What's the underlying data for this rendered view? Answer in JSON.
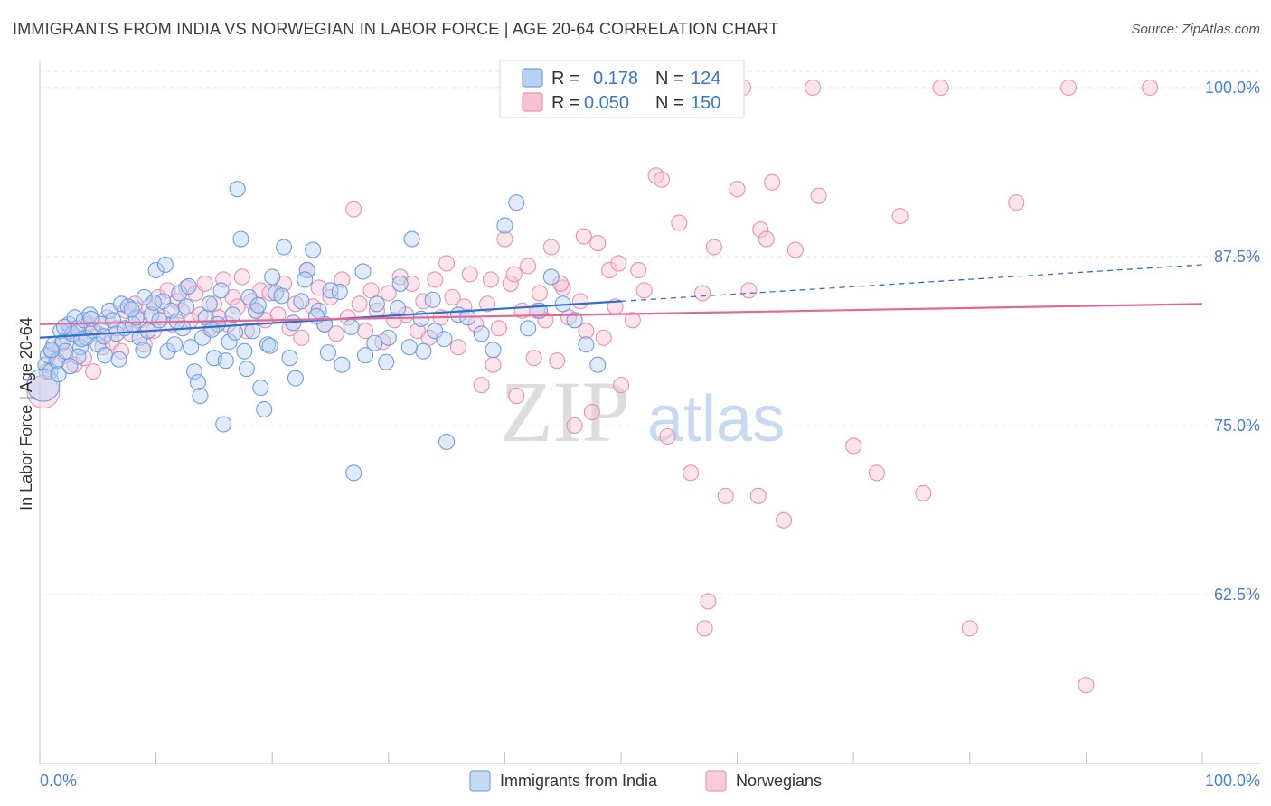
{
  "title": "IMMIGRANTS FROM INDIA VS NORWEGIAN IN LABOR FORCE | AGE 20-64 CORRELATION CHART",
  "source": "Source: ZipAtlas.com",
  "watermark": {
    "zip": "ZIP",
    "atlas": "atlas"
  },
  "legend": {
    "r_label": "R =",
    "n_label": "N =",
    "entries": [
      {
        "r": "0.178",
        "n": "124",
        "fill": "#b8d1f3",
        "stroke": "#6e9ee0"
      },
      {
        "r": "0.050",
        "n": "150",
        "fill": "#f7c3d3",
        "stroke": "#e891ae"
      }
    ]
  },
  "bottom_legend": [
    {
      "label": "Immigrants from India",
      "fill": "#c5d9f5",
      "stroke": "#7aa4e0"
    },
    {
      "label": "Norwegians",
      "fill": "#f8cbd9",
      "stroke": "#e7a0b8"
    }
  ],
  "chart_data": {
    "type": "scatter",
    "title": "IMMIGRANTS FROM INDIA VS NORWEGIAN IN LABOR FORCE | AGE 20-64 CORRELATION CHART",
    "xlabel": "",
    "ylabel": "In Labor Force | Age 20-64",
    "xlim": [
      0,
      100
    ],
    "ylim": [
      50,
      101
    ],
    "x_tick_labels": [
      "0.0%",
      "100.0%"
    ],
    "y_ticks": [
      62.5,
      75.0,
      87.5,
      100.0
    ],
    "y_tick_labels": [
      "62.5%",
      "75.0%",
      "87.5%",
      "100.0%"
    ],
    "grid": true,
    "legend_position": "top-center",
    "colors": {
      "india": "#4f86d8",
      "norwegians": "#e57fa3",
      "india_line": "#2f6fce",
      "norwegians_line": "#e26896"
    },
    "series": [
      {
        "name": "Immigrants from India",
        "r": 0.178,
        "n": 124,
        "trend": {
          "x": [
            0,
            50,
            100
          ],
          "y": [
            81.5,
            84.2,
            86.9
          ],
          "solid_until": 50
        },
        "points": [
          [
            0.5,
            79.5
          ],
          [
            0.7,
            80.2
          ],
          [
            0.9,
            79.0
          ],
          [
            1.2,
            81.0
          ],
          [
            1.5,
            79.8
          ],
          [
            1.8,
            82.0
          ],
          [
            2.0,
            81.2
          ],
          [
            2.2,
            80.5
          ],
          [
            2.5,
            82.5
          ],
          [
            2.8,
            81.8
          ],
          [
            3.0,
            83.0
          ],
          [
            3.2,
            82.2
          ],
          [
            3.5,
            80.8
          ],
          [
            3.8,
            82.8
          ],
          [
            4.0,
            81.5
          ],
          [
            4.3,
            83.2
          ],
          [
            4.6,
            82.0
          ],
          [
            5.0,
            81.0
          ],
          [
            5.3,
            82.5
          ],
          [
            5.6,
            80.2
          ],
          [
            6.0,
            83.5
          ],
          [
            6.3,
            82.8
          ],
          [
            6.6,
            81.8
          ],
          [
            7.0,
            84.0
          ],
          [
            7.3,
            82.2
          ],
          [
            7.6,
            83.8
          ],
          [
            8.0,
            82.5
          ],
          [
            8.3,
            83.0
          ],
          [
            8.6,
            81.5
          ],
          [
            9.0,
            84.5
          ],
          [
            9.3,
            82.0
          ],
          [
            9.6,
            83.2
          ],
          [
            10.0,
            86.5
          ],
          [
            10.3,
            82.8
          ],
          [
            10.6,
            84.2
          ],
          [
            11.0,
            80.5
          ],
          [
            11.3,
            83.5
          ],
          [
            11.6,
            81.0
          ],
          [
            12.0,
            84.8
          ],
          [
            12.3,
            82.2
          ],
          [
            12.6,
            83.8
          ],
          [
            13.0,
            80.8
          ],
          [
            13.3,
            79.0
          ],
          [
            13.6,
            78.2
          ],
          [
            14.0,
            81.5
          ],
          [
            14.3,
            83.0
          ],
          [
            14.6,
            84.0
          ],
          [
            15.0,
            80.0
          ],
          [
            15.3,
            82.5
          ],
          [
            15.6,
            85.0
          ],
          [
            16.0,
            79.8
          ],
          [
            16.3,
            81.2
          ],
          [
            16.6,
            83.2
          ],
          [
            17.0,
            92.5
          ],
          [
            17.3,
            88.8
          ],
          [
            17.6,
            80.5
          ],
          [
            18.0,
            84.5
          ],
          [
            18.3,
            82.0
          ],
          [
            18.6,
            83.5
          ],
          [
            19.0,
            77.8
          ],
          [
            19.3,
            76.2
          ],
          [
            19.6,
            81.0
          ],
          [
            20.0,
            86.0
          ],
          [
            20.3,
            84.8
          ],
          [
            21.0,
            88.2
          ],
          [
            21.5,
            80.0
          ],
          [
            22.0,
            78.5
          ],
          [
            22.5,
            84.2
          ],
          [
            23.0,
            86.5
          ],
          [
            23.5,
            88.0
          ],
          [
            24.0,
            83.5
          ],
          [
            24.5,
            82.5
          ],
          [
            25.0,
            85.0
          ],
          [
            26.0,
            79.5
          ],
          [
            27.0,
            71.5
          ],
          [
            28.0,
            80.2
          ],
          [
            29.0,
            84.0
          ],
          [
            30.0,
            81.5
          ],
          [
            31.0,
            85.5
          ],
          [
            32.0,
            88.8
          ],
          [
            33.0,
            80.5
          ],
          [
            34.0,
            82.0
          ],
          [
            35.0,
            73.8
          ],
          [
            36.0,
            83.2
          ],
          [
            38.0,
            81.8
          ],
          [
            40.0,
            89.8
          ],
          [
            41.0,
            91.5
          ],
          [
            43.0,
            83.5
          ],
          [
            44.0,
            86.0
          ],
          [
            45.0,
            84.0
          ],
          [
            46.0,
            82.8
          ],
          [
            47.0,
            81.0
          ],
          [
            48.0,
            79.5
          ],
          [
            2.1,
            82.3
          ],
          [
            3.3,
            80.1
          ],
          [
            4.4,
            82.9
          ],
          [
            5.5,
            81.6
          ],
          [
            6.8,
            79.9
          ],
          [
            7.9,
            83.6
          ],
          [
            8.9,
            80.6
          ],
          [
            9.8,
            84.1
          ],
          [
            10.8,
            86.9
          ],
          [
            11.8,
            82.7
          ],
          [
            12.8,
            85.3
          ],
          [
            13.8,
            77.2
          ],
          [
            14.8,
            82.1
          ],
          [
            15.8,
            75.1
          ],
          [
            16.8,
            81.9
          ],
          [
            17.8,
            79.2
          ],
          [
            18.8,
            83.9
          ],
          [
            19.8,
            80.9
          ],
          [
            20.8,
            84.6
          ],
          [
            21.8,
            82.6
          ],
          [
            22.8,
            85.8
          ],
          [
            23.8,
            83.1
          ],
          [
            24.8,
            80.4
          ],
          [
            25.8,
            84.9
          ],
          [
            26.8,
            82.3
          ],
          [
            27.8,
            86.4
          ],
          [
            28.8,
            81.1
          ],
          [
            29.8,
            79.7
          ],
          [
            30.8,
            83.7
          ],
          [
            31.8,
            80.8
          ],
          [
            32.8,
            82.9
          ],
          [
            33.8,
            84.3
          ],
          [
            34.8,
            81.4
          ],
          [
            36.8,
            83.0
          ],
          [
            39.0,
            80.6
          ],
          [
            42.0,
            82.2
          ],
          [
            0.3,
            78.0
          ],
          [
            1.0,
            80.6
          ],
          [
            1.6,
            78.8
          ],
          [
            2.6,
            79.4
          ],
          [
            3.6,
            81.4
          ]
        ]
      },
      {
        "name": "Norwegians",
        "r": 0.05,
        "n": 150,
        "trend": {
          "x": [
            0,
            100
          ],
          "y": [
            82.5,
            84.0
          ]
        },
        "points": [
          [
            0.3,
            77.5
          ],
          [
            0.6,
            79.0
          ],
          [
            1.0,
            80.5
          ],
          [
            1.4,
            79.8
          ],
          [
            1.8,
            81.0
          ],
          [
            2.2,
            80.2
          ],
          [
            2.6,
            82.0
          ],
          [
            3.0,
            79.5
          ],
          [
            3.4,
            81.5
          ],
          [
            3.8,
            80.0
          ],
          [
            4.2,
            82.5
          ],
          [
            4.6,
            79.0
          ],
          [
            5.0,
            81.8
          ],
          [
            5.4,
            80.8
          ],
          [
            5.8,
            83.0
          ],
          [
            6.2,
            81.2
          ],
          [
            6.6,
            82.2
          ],
          [
            7.0,
            80.5
          ],
          [
            7.4,
            83.5
          ],
          [
            7.8,
            81.8
          ],
          [
            8.2,
            84.0
          ],
          [
            8.6,
            82.8
          ],
          [
            9.0,
            81.0
          ],
          [
            9.4,
            83.8
          ],
          [
            9.8,
            82.0
          ],
          [
            10.2,
            84.5
          ],
          [
            10.6,
            83.0
          ],
          [
            11.0,
            85.0
          ],
          [
            11.4,
            82.5
          ],
          [
            11.8,
            84.2
          ],
          [
            12.2,
            83.5
          ],
          [
            12.6,
            85.2
          ],
          [
            13.0,
            82.8
          ],
          [
            13.4,
            84.8
          ],
          [
            13.8,
            83.2
          ],
          [
            14.2,
            85.5
          ],
          [
            14.6,
            82.2
          ],
          [
            15.0,
            84.0
          ],
          [
            15.4,
            83.0
          ],
          [
            15.8,
            85.8
          ],
          [
            16.2,
            82.5
          ],
          [
            16.6,
            84.5
          ],
          [
            17.0,
            83.8
          ],
          [
            17.4,
            86.0
          ],
          [
            17.8,
            82.0
          ],
          [
            18.2,
            84.2
          ],
          [
            18.6,
            83.5
          ],
          [
            19.0,
            85.0
          ],
          [
            19.4,
            82.8
          ],
          [
            19.8,
            84.8
          ],
          [
            20.5,
            83.2
          ],
          [
            21.0,
            85.5
          ],
          [
            21.5,
            82.2
          ],
          [
            22.0,
            84.0
          ],
          [
            22.5,
            81.5
          ],
          [
            23.0,
            86.5
          ],
          [
            23.5,
            83.8
          ],
          [
            24.0,
            85.2
          ],
          [
            24.5,
            82.5
          ],
          [
            25.0,
            84.5
          ],
          [
            25.5,
            81.8
          ],
          [
            26.0,
            85.8
          ],
          [
            26.5,
            83.0
          ],
          [
            27.0,
            91.0
          ],
          [
            27.5,
            84.0
          ],
          [
            28.0,
            82.0
          ],
          [
            28.5,
            85.0
          ],
          [
            29.0,
            83.5
          ],
          [
            29.5,
            81.2
          ],
          [
            30.0,
            84.8
          ],
          [
            30.5,
            82.8
          ],
          [
            31.0,
            86.0
          ],
          [
            31.5,
            83.2
          ],
          [
            32.0,
            85.5
          ],
          [
            32.5,
            82.0
          ],
          [
            33.0,
            84.2
          ],
          [
            33.5,
            81.5
          ],
          [
            34.0,
            85.8
          ],
          [
            34.5,
            83.0
          ],
          [
            35.0,
            87.0
          ],
          [
            35.5,
            84.5
          ],
          [
            36.0,
            80.8
          ],
          [
            36.5,
            83.8
          ],
          [
            37.0,
            86.2
          ],
          [
            37.5,
            82.5
          ],
          [
            38.0,
            78.0
          ],
          [
            38.5,
            84.0
          ],
          [
            39.0,
            79.5
          ],
          [
            39.5,
            82.2
          ],
          [
            40.0,
            88.8
          ],
          [
            40.5,
            85.5
          ],
          [
            41.0,
            77.2
          ],
          [
            41.5,
            83.5
          ],
          [
            42.0,
            86.8
          ],
          [
            42.5,
            80.0
          ],
          [
            43.0,
            84.8
          ],
          [
            43.5,
            82.8
          ],
          [
            44.0,
            88.2
          ],
          [
            44.5,
            79.8
          ],
          [
            45.0,
            85.2
          ],
          [
            45.5,
            83.0
          ],
          [
            46.0,
            75.0
          ],
          [
            46.5,
            84.2
          ],
          [
            47.0,
            82.0
          ],
          [
            47.5,
            76.0
          ],
          [
            48.0,
            88.5
          ],
          [
            48.5,
            81.5
          ],
          [
            49.0,
            86.5
          ],
          [
            49.5,
            83.8
          ],
          [
            50.0,
            78.0
          ],
          [
            51.0,
            82.8
          ],
          [
            52.0,
            85.0
          ],
          [
            53.0,
            93.5
          ],
          [
            54.0,
            74.2
          ],
          [
            55.0,
            90.0
          ],
          [
            56.0,
            71.5
          ],
          [
            57.0,
            84.8
          ],
          [
            58.0,
            88.2
          ],
          [
            59.0,
            69.8
          ],
          [
            60.0,
            92.5
          ],
          [
            61.0,
            85.0
          ],
          [
            62.0,
            89.5
          ],
          [
            63.0,
            93.0
          ],
          [
            64.0,
            68.0
          ],
          [
            65.0,
            88.0
          ],
          [
            67.0,
            92.0
          ],
          [
            70.0,
            73.5
          ],
          [
            72.0,
            71.5
          ],
          [
            74.0,
            90.5
          ],
          [
            76.0,
            70.0
          ],
          [
            80.0,
            60.0
          ],
          [
            84.0,
            91.5
          ],
          [
            90.0,
            55.8
          ],
          [
            60.5,
            100
          ],
          [
            66.5,
            100
          ],
          [
            77.5,
            100
          ],
          [
            88.5,
            100
          ],
          [
            95.5,
            100
          ],
          [
            53.5,
            93.2
          ],
          [
            57.5,
            62.0
          ],
          [
            57.2,
            60.0
          ],
          [
            61.8,
            69.8
          ],
          [
            62.5,
            88.8
          ],
          [
            51.5,
            86.5
          ],
          [
            49.8,
            87.0
          ],
          [
            46.8,
            89.0
          ],
          [
            44.8,
            85.5
          ],
          [
            42.8,
            83.5
          ],
          [
            40.8,
            86.2
          ],
          [
            38.8,
            85.8
          ]
        ]
      }
    ]
  }
}
